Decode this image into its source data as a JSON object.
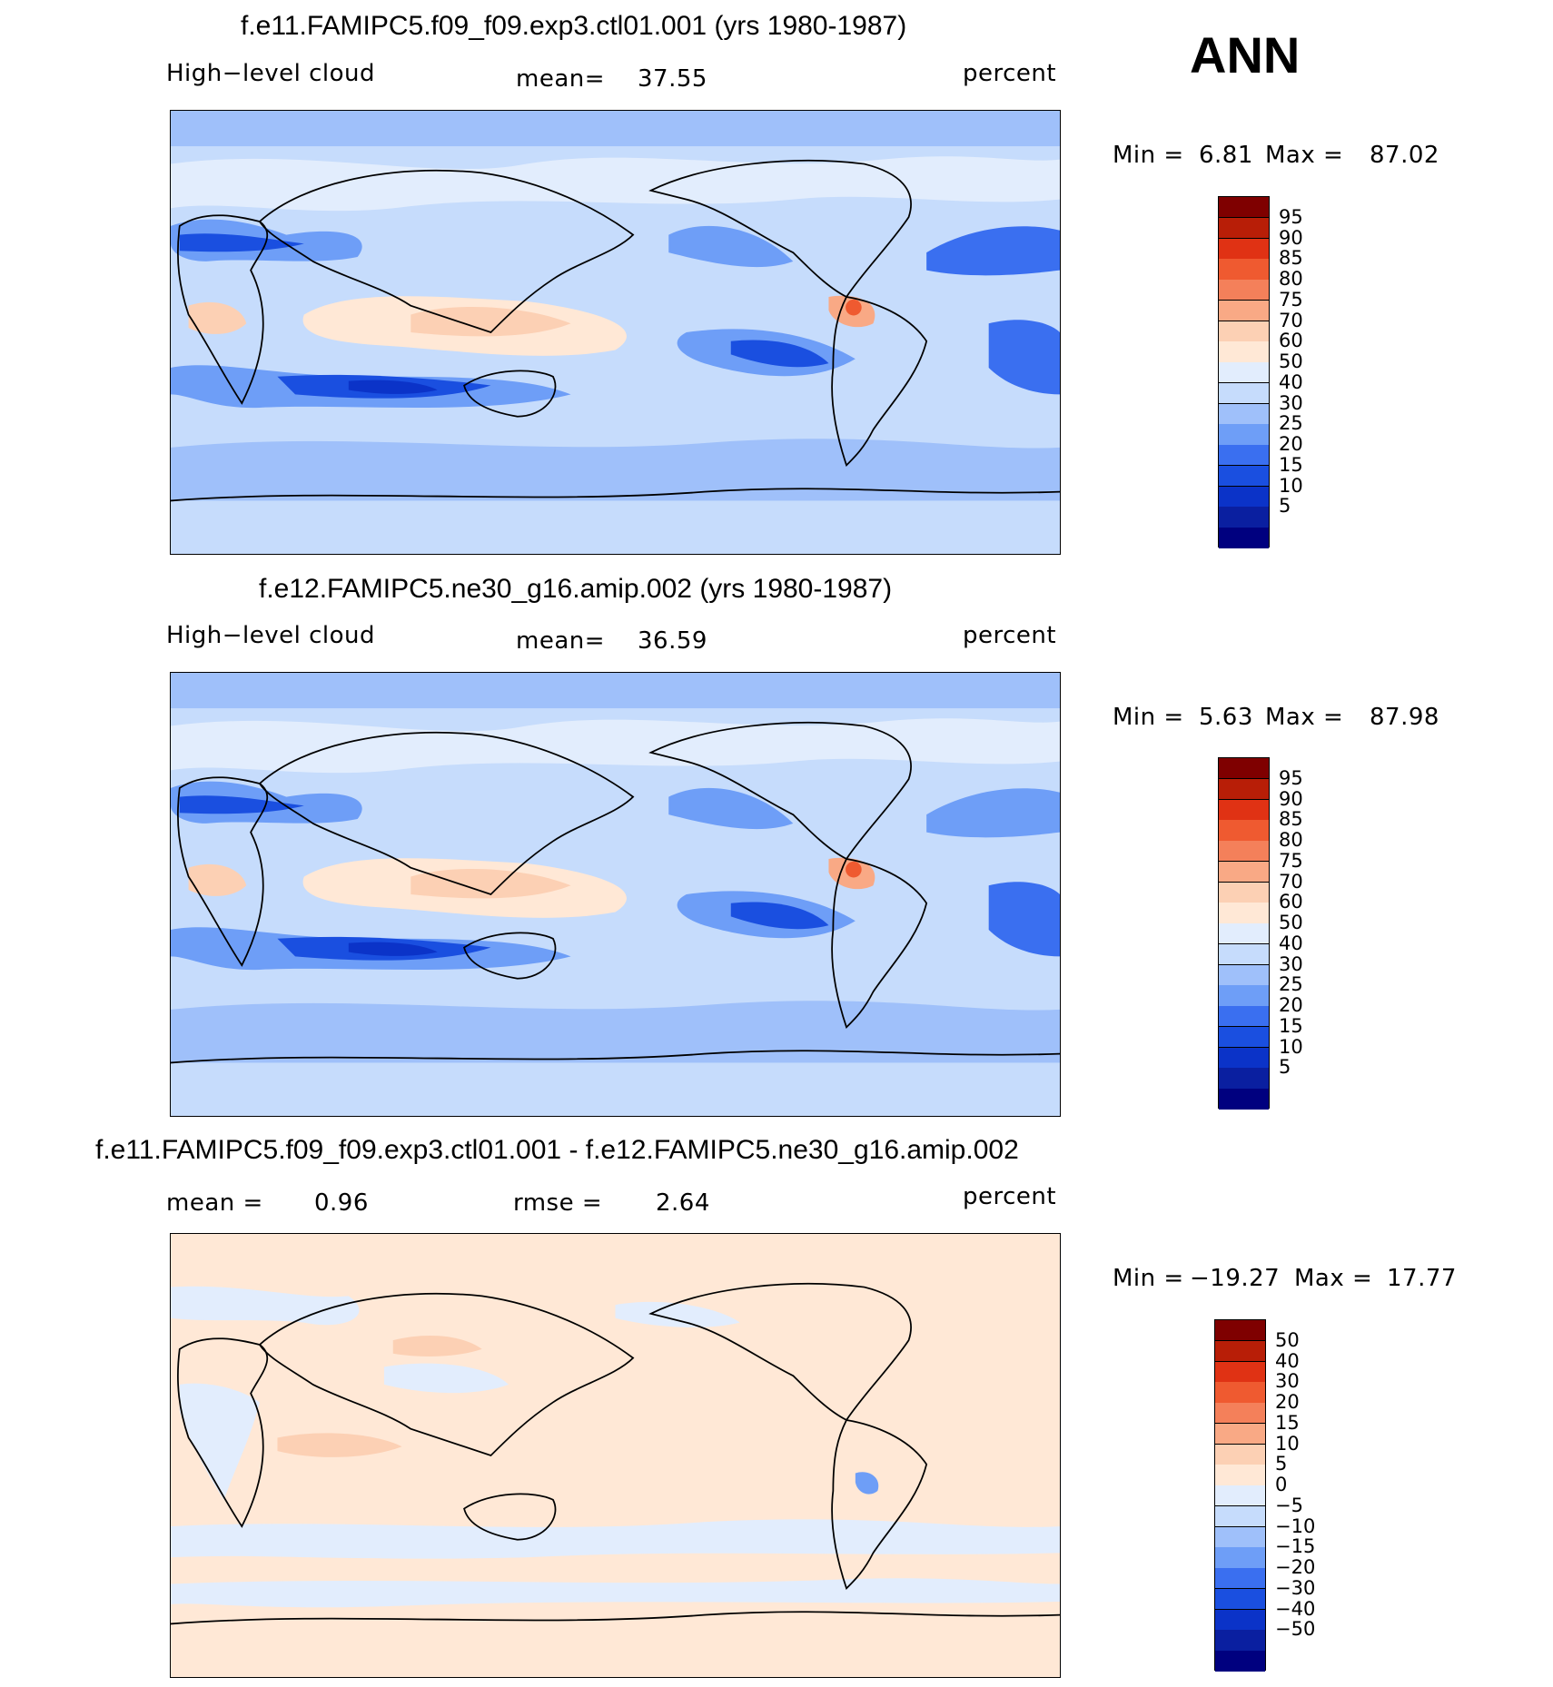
{
  "season": "ANN",
  "colors": {
    "cbar_levels": [
      "#00007f",
      "#0a1fa0",
      "#0b33c8",
      "#1a4fe0",
      "#3a6ff0",
      "#6e9ef7",
      "#9fc0fa",
      "#c6dcfc",
      "#e2edfd",
      "#ffe8d6",
      "#fcd0b4",
      "#f9a985",
      "#f4805a",
      "#ef5a30",
      "#e03214",
      "#b81e07",
      "#7f0000"
    ],
    "land_outline": "#000000"
  },
  "panels": [
    {
      "title": "f.e11.FAMIPC5.f09_f09.exp3.ctl01.001 (yrs 1980-1987)",
      "left_label": "High−level cloud",
      "center_label": "mean=",
      "center_value": "37.55",
      "right_label": "percent",
      "minmax": {
        "min_label": "Min =",
        "min": "6.81",
        "max_label": "Max =",
        "max": "87.02"
      },
      "colorbar_labels": [
        "95",
        "90",
        "85",
        "80",
        "75",
        "70",
        "60",
        "50",
        "40",
        "30",
        "25",
        "20",
        "15",
        "10",
        "5"
      ]
    },
    {
      "title": "f.e12.FAMIPC5.ne30_g16.amip.002 (yrs 1980-1987)",
      "left_label": "High−level cloud",
      "center_label": "mean=",
      "center_value": "36.59",
      "right_label": "percent",
      "minmax": {
        "min_label": "Min =",
        "min": "5.63",
        "max_label": "Max =",
        "max": "87.98"
      },
      "colorbar_labels": [
        "95",
        "90",
        "85",
        "80",
        "75",
        "70",
        "60",
        "50",
        "40",
        "30",
        "25",
        "20",
        "15",
        "10",
        "5"
      ]
    },
    {
      "title": "f.e11.FAMIPC5.f09_f09.exp3.ctl01.001 - f.e12.FAMIPC5.ne30_g16.amip.002",
      "left_label": "mean =",
      "left_value": "0.96",
      "center_label": "rmse =",
      "center_value": "2.64",
      "right_label": "percent",
      "minmax": {
        "min_label": "Min =",
        "min": "−19.27",
        "max_label": "Max =",
        "max": "17.77"
      },
      "colorbar_labels": [
        "50",
        "40",
        "30",
        "20",
        "15",
        "10",
        "5",
        "0",
        "−5",
        "−10",
        "−15",
        "−20",
        "−30",
        "−40",
        "−50"
      ]
    }
  ]
}
